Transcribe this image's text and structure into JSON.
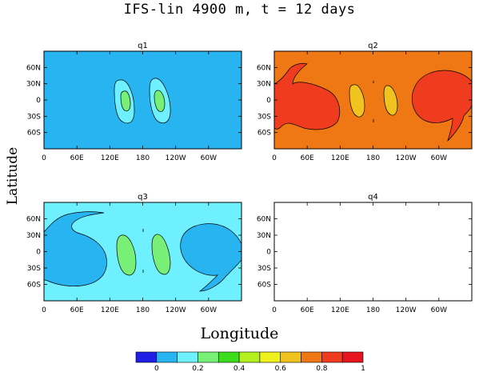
{
  "title": "IFS-lin 4900 m, t = 12 days",
  "ylabel": "Latitude",
  "xlabel": "Longitude",
  "lat_ticks": [
    "60N",
    "30N",
    "0",
    "30S",
    "60S"
  ],
  "lon_ticks": [
    "0",
    "60E",
    "120E",
    "180",
    "120W",
    "60W"
  ],
  "colorbar": {
    "colors": [
      "#1f1fe6",
      "#28b4f0",
      "#6ff0ff",
      "#78f078",
      "#3cdc1e",
      "#b4f01e",
      "#f0f01e",
      "#f0c31e",
      "#f07814",
      "#f03c1e",
      "#e6141e"
    ],
    "labels": [
      "0",
      "0.2",
      "0.4",
      "0.6",
      "0.8",
      "1"
    ]
  },
  "chart_data": [
    {
      "type": "heatmap",
      "title": "q1",
      "background": "#28b4f0",
      "xlabel": "Longitude",
      "ylabel": "Latitude"
    },
    {
      "type": "heatmap",
      "title": "q2",
      "background": "#f07814",
      "xlabel": "Longitude",
      "ylabel": "Latitude"
    },
    {
      "type": "heatmap",
      "title": "q3",
      "background": "#6ff0ff",
      "xlabel": "Longitude",
      "ylabel": "Latitude"
    },
    {
      "type": "heatmap",
      "title": "q4",
      "background": "#ffffff",
      "xlabel": "Longitude",
      "ylabel": "Latitude"
    }
  ]
}
